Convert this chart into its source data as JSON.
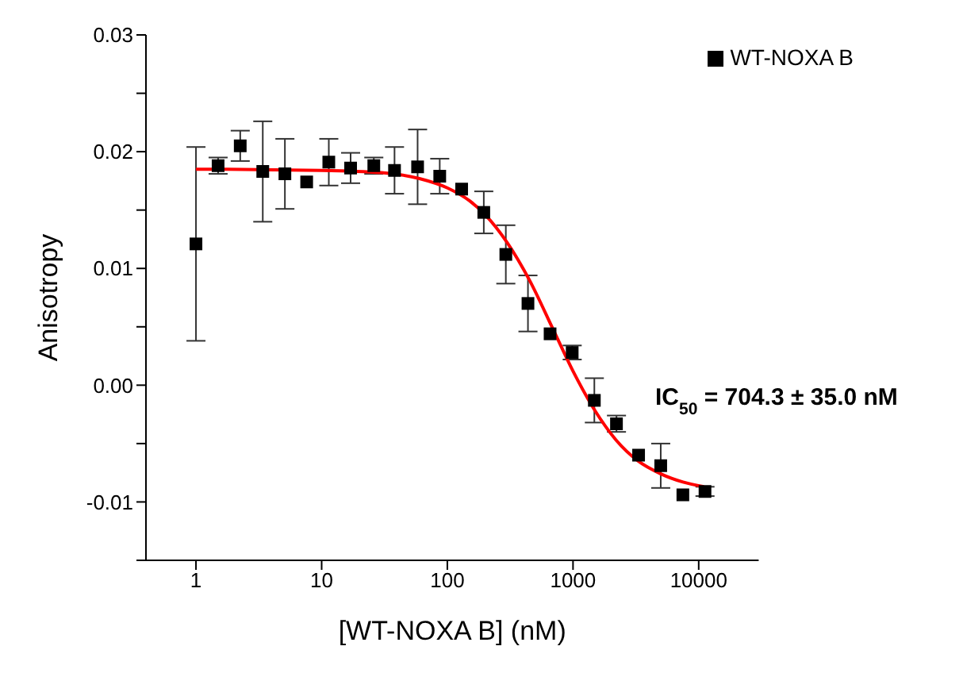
{
  "chart_data": {
    "type": "scatter",
    "xlabel": "[WT-NOXA B] (nM)",
    "ylabel": "Anisotropy",
    "log": "x",
    "xlim": [
      0.4,
      30000
    ],
    "xticks": [
      1,
      10,
      100,
      1000,
      10000
    ],
    "ylim": [
      -0.015,
      0.03
    ],
    "yticks": [
      {
        "value": -0.015,
        "label": null
      },
      {
        "value": -0.01,
        "label": "-0.01"
      },
      {
        "value": -0.005,
        "label": null
      },
      {
        "value": 0,
        "label": "0.00"
      },
      {
        "value": 0.005,
        "label": null
      },
      {
        "value": 0.01,
        "label": "0.01"
      },
      {
        "value": 0.015,
        "label": null
      },
      {
        "value": 0.02,
        "label": "0.02"
      },
      {
        "value": 0.025,
        "label": null
      },
      {
        "value": 0.03,
        "label": "0.03"
      }
    ],
    "grid": false,
    "legend": "top right",
    "marker": "square",
    "annotations": [
      "IC$_{50}$ = 704.3 ± 35.0 nM"
    ],
    "series": [
      {
        "name": "WT-NOXA B",
        "color": "#000000",
        "x": [
          1,
          1.5,
          2.25,
          3.4,
          5.1,
          7.6,
          11.4,
          17,
          26,
          38,
          58,
          87,
          130,
          195,
          292,
          438,
          657,
          985,
          1478,
          2217,
          3325,
          4988,
          7482,
          11223
        ],
        "values": [
          0.0121,
          0.0188,
          0.0205,
          0.0183,
          0.0181,
          0.0174,
          0.0191,
          0.0186,
          0.0188,
          0.0184,
          0.0187,
          0.0179,
          0.0168,
          0.0148,
          0.0112,
          0.007,
          0.0044,
          0.0028,
          -0.0013,
          -0.0033,
          -0.006,
          -0.0069,
          -0.0094,
          -0.0091
        ],
        "errors": [
          0.0083,
          0.0007,
          0.0013,
          0.0043,
          0.003,
          null,
          0.002,
          0.0013,
          0.0007,
          0.002,
          0.0032,
          0.0015,
          null,
          0.0018,
          0.0025,
          0.0024,
          null,
          0.0006,
          0.0019,
          0.0007,
          null,
          0.0019,
          null,
          0.0004
        ]
      },
      {
        "type": "line",
        "color": "#ff0000",
        "marker": "none",
        "x": [
          1,
          10,
          30,
          60,
          100,
          150,
          200,
          300,
          450,
          700,
          1000,
          1500,
          2200,
          3300,
          5000,
          7500,
          11000
        ],
        "values": [
          0.0185,
          0.0184,
          0.0182,
          0.0177,
          0.0169,
          0.0158,
          0.0146,
          0.0122,
          0.009,
          0.0047,
          0.0012,
          -0.0022,
          -0.0047,
          -0.0065,
          -0.0076,
          -0.0083,
          -0.0087
        ]
      }
    ]
  }
}
